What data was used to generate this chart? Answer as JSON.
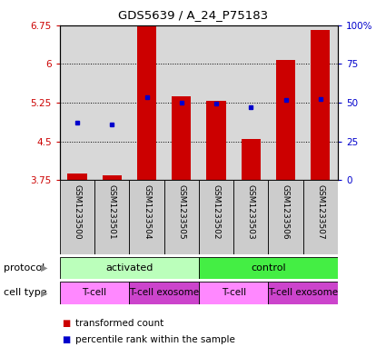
{
  "title": "GDS5639 / A_24_P75183",
  "samples": [
    "GSM1233500",
    "GSM1233501",
    "GSM1233504",
    "GSM1233505",
    "GSM1233502",
    "GSM1233503",
    "GSM1233506",
    "GSM1233507"
  ],
  "bar_values": [
    3.88,
    3.85,
    6.72,
    5.38,
    5.28,
    4.55,
    6.08,
    6.65
  ],
  "bar_bottom": 3.75,
  "percentile_values": [
    4.87,
    4.83,
    5.35,
    5.25,
    5.24,
    5.17,
    5.3,
    5.32
  ],
  "ylim": [
    3.75,
    6.75
  ],
  "yticks": [
    3.75,
    4.5,
    5.25,
    6.0,
    6.75
  ],
  "ytick_labels": [
    "3.75",
    "4.5",
    "5.25",
    "6",
    "6.75"
  ],
  "y2ticks": [
    0,
    25,
    50,
    75,
    100
  ],
  "y2tick_labels": [
    "0",
    "25",
    "50",
    "75",
    "100%"
  ],
  "bar_color": "#cc0000",
  "dot_color": "#0000cc",
  "protocol_groups": [
    {
      "label": "activated",
      "start": 0,
      "end": 4,
      "color": "#bbffbb"
    },
    {
      "label": "control",
      "start": 4,
      "end": 8,
      "color": "#44ee44"
    }
  ],
  "cell_type_groups": [
    {
      "label": "T-cell",
      "start": 0,
      "end": 2,
      "color": "#ff88ff"
    },
    {
      "label": "T-cell exosome",
      "start": 2,
      "end": 4,
      "color": "#cc44cc"
    },
    {
      "label": "T-cell",
      "start": 4,
      "end": 6,
      "color": "#ff88ff"
    },
    {
      "label": "T-cell exosome",
      "start": 6,
      "end": 8,
      "color": "#cc44cc"
    }
  ],
  "legend_items": [
    {
      "label": "transformed count",
      "color": "#cc0000"
    },
    {
      "label": "percentile rank within the sample",
      "color": "#0000cc"
    }
  ],
  "protocol_label": "protocol",
  "cell_type_label": "cell type",
  "bar_width": 0.55,
  "plot_bg_color": "#d8d8d8",
  "sample_bg_color": "#cccccc"
}
